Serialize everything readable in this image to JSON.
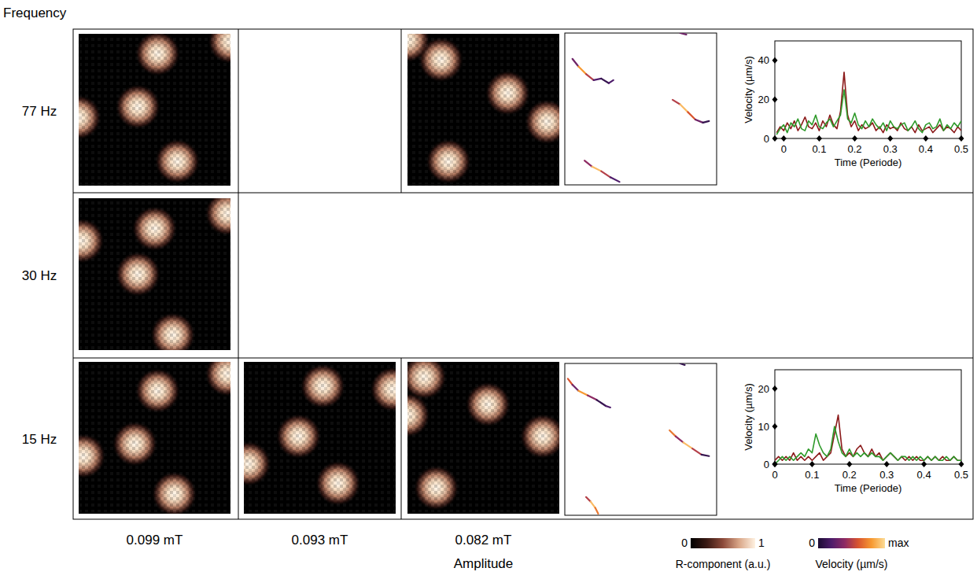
{
  "y_axis_title": "Frequency",
  "x_axis_title": "Amplitude",
  "rows": [
    "77 Hz",
    "30 Hz",
    "15 Hz"
  ],
  "columns": [
    "0.099 mT",
    "0.093 mT",
    "0.082 mT"
  ],
  "images": [
    {
      "row": 0,
      "col": 0,
      "spots": [
        [
          0.52,
          0.13
        ],
        [
          0.39,
          0.48
        ],
        [
          0.65,
          0.84
        ],
        [
          1.0,
          0.05
        ],
        [
          0.0,
          0.55
        ]
      ]
    },
    {
      "row": 1,
      "col": 0,
      "spots": [
        [
          0.5,
          0.2
        ],
        [
          0.39,
          0.5
        ],
        [
          0.62,
          0.9
        ],
        [
          0.98,
          0.1
        ],
        [
          0.02,
          0.28
        ]
      ]
    },
    {
      "row": 2,
      "col": 0,
      "spots": [
        [
          0.52,
          0.19
        ],
        [
          0.37,
          0.54
        ],
        [
          0.63,
          0.87
        ],
        [
          0.98,
          0.08
        ],
        [
          0.03,
          0.62
        ]
      ]
    },
    {
      "row": 2,
      "col": 1,
      "spots": [
        [
          0.52,
          0.16
        ],
        [
          0.36,
          0.49
        ],
        [
          0.62,
          0.8
        ],
        [
          0.98,
          0.18
        ],
        [
          0.03,
          0.67
        ]
      ]
    },
    {
      "row": 0,
      "col": 2,
      "spots": [
        [
          0.22,
          0.17
        ],
        [
          0.66,
          0.39
        ],
        [
          0.92,
          0.58
        ],
        [
          0.27,
          0.84
        ],
        [
          0.0,
          0.04
        ]
      ]
    },
    {
      "row": 2,
      "col": 2,
      "spots": [
        [
          0.11,
          0.1
        ],
        [
          0.53,
          0.28
        ],
        [
          0.89,
          0.49
        ],
        [
          0.19,
          0.83
        ],
        [
          0.0,
          0.35
        ]
      ]
    }
  ],
  "trajectories": [
    {
      "row": 0,
      "tracks": [
        {
          "points": [
            [
              0.05,
              0.17,
              0.1
            ],
            [
              0.09,
              0.22,
              0.3
            ],
            [
              0.14,
              0.27,
              0.8
            ],
            [
              0.19,
              0.31,
              0.5
            ],
            [
              0.24,
              0.3,
              0.2
            ],
            [
              0.29,
              0.33,
              0.1
            ],
            [
              0.32,
              0.31,
              0.2
            ]
          ]
        },
        {
          "points": [
            [
              0.71,
              0.44,
              0.2
            ],
            [
              0.76,
              0.47,
              0.5
            ],
            [
              0.81,
              0.52,
              0.9
            ],
            [
              0.86,
              0.57,
              0.6
            ],
            [
              0.91,
              0.59,
              0.3
            ],
            [
              0.95,
              0.58,
              0.1
            ]
          ]
        },
        {
          "points": [
            [
              0.13,
              0.84,
              0.1
            ],
            [
              0.18,
              0.88,
              0.4
            ],
            [
              0.24,
              0.91,
              0.9
            ],
            [
              0.3,
              0.95,
              0.5
            ],
            [
              0.36,
              0.98,
              0.2
            ]
          ]
        },
        {
          "points": [
            [
              0.76,
              0.0,
              0.8
            ],
            [
              0.8,
              0.01,
              0.3
            ]
          ]
        }
      ]
    },
    {
      "row": 2,
      "tracks": [
        {
          "points": [
            [
              0.02,
              0.1,
              0.2
            ],
            [
              0.05,
              0.14,
              0.6
            ],
            [
              0.09,
              0.18,
              0.3
            ],
            [
              0.15,
              0.21,
              0.8
            ],
            [
              0.21,
              0.24,
              0.4
            ],
            [
              0.27,
              0.28,
              0.1
            ],
            [
              0.3,
              0.29,
              0.2
            ]
          ]
        },
        {
          "points": [
            [
              0.69,
              0.44,
              0.3
            ],
            [
              0.73,
              0.48,
              0.7
            ],
            [
              0.78,
              0.52,
              0.4
            ],
            [
              0.84,
              0.56,
              0.9
            ],
            [
              0.9,
              0.6,
              0.5
            ],
            [
              0.95,
              0.61,
              0.1
            ]
          ]
        },
        {
          "points": [
            [
              0.14,
              0.88,
              0.2
            ],
            [
              0.17,
              0.91,
              0.5
            ],
            [
              0.2,
              0.95,
              0.9
            ],
            [
              0.22,
              0.99,
              0.7
            ]
          ]
        },
        {
          "points": [
            [
              0.76,
              0.0,
              0.3
            ],
            [
              0.79,
              0.01,
              0.1
            ]
          ]
        }
      ]
    }
  ],
  "colorbars": [
    {
      "label": "R-component (a.u.)",
      "range": [
        0,
        1
      ],
      "ticks": [
        0,
        1
      ]
    },
    {
      "label": "Velocity (µm/s)",
      "range": [
        0,
        1
      ],
      "ticks": [
        0,
        {
          "value": 1,
          "label": "max"
        }
      ]
    }
  ],
  "chart_data": [
    {
      "type": "line",
      "x_label": "Time (Periode)",
      "y_label": "Velocity (µm/s)",
      "x": [
        -0.02,
        -0.01,
        0,
        0.01,
        0.02,
        0.03,
        0.04,
        0.05,
        0.06,
        0.07,
        0.08,
        0.09,
        0.1,
        0.11,
        0.12,
        0.13,
        0.14,
        0.15,
        0.16,
        0.17,
        0.18,
        0.19,
        0.2,
        0.21,
        0.22,
        0.23,
        0.24,
        0.25,
        0.26,
        0.27,
        0.28,
        0.29,
        0.3,
        0.31,
        0.32,
        0.33,
        0.34,
        0.35,
        0.36,
        0.37,
        0.38,
        0.39,
        0.4,
        0.41,
        0.42,
        0.43,
        0.44,
        0.45,
        0.46,
        0.47,
        0.48,
        0.49,
        0.5
      ],
      "series": [
        {
          "color": "#8b1a1a",
          "values": [
            3,
            6,
            4,
            8,
            5,
            9,
            4,
            7,
            11,
            6,
            5,
            8,
            4,
            9,
            6,
            12,
            7,
            5,
            14,
            34,
            12,
            6,
            9,
            4,
            7,
            5,
            6,
            8,
            4,
            6,
            3,
            7,
            5,
            6,
            4,
            8,
            5,
            4,
            6,
            3,
            7,
            4,
            5,
            6,
            3,
            5,
            7,
            4,
            6,
            5,
            3,
            6,
            4
          ]
        },
        {
          "color": "#2e9a2a",
          "values": [
            2,
            5,
            7,
            3,
            8,
            6,
            10,
            5,
            4,
            9,
            7,
            12,
            6,
            5,
            8,
            10,
            6,
            9,
            12,
            25,
            10,
            8,
            13,
            7,
            5,
            9,
            6,
            10,
            7,
            5,
            8,
            4,
            9,
            6,
            5,
            7,
            8,
            4,
            6,
            9,
            5,
            3,
            7,
            8,
            5,
            6,
            10,
            4,
            7,
            5,
            8,
            6,
            9
          ]
        }
      ],
      "xlim": [
        -0.025,
        0.5
      ],
      "ylim": [
        0,
        50
      ],
      "xticks": [
        0,
        0.1,
        0.2,
        0.3,
        0.4,
        0.5
      ],
      "yticks": [
        0,
        20,
        40
      ]
    },
    {
      "type": "line",
      "x_label": "Time (Periode)",
      "y_label": "Velocity (µm/s)",
      "x": [
        0,
        0.01,
        0.02,
        0.03,
        0.04,
        0.05,
        0.06,
        0.07,
        0.08,
        0.09,
        0.1,
        0.11,
        0.12,
        0.13,
        0.14,
        0.15,
        0.16,
        0.17,
        0.18,
        0.19,
        0.2,
        0.21,
        0.22,
        0.23,
        0.24,
        0.25,
        0.26,
        0.27,
        0.28,
        0.29,
        0.3,
        0.31,
        0.32,
        0.33,
        0.34,
        0.35,
        0.36,
        0.37,
        0.38,
        0.39,
        0.4,
        0.41,
        0.42,
        0.43,
        0.44,
        0.45,
        0.46,
        0.47,
        0.48,
        0.49,
        0.5
      ],
      "series": [
        {
          "color": "#8b1a1a",
          "values": [
            1,
            2,
            1,
            2,
            1,
            3,
            1,
            2,
            1,
            2,
            1,
            2,
            3,
            1,
            2,
            3,
            8,
            13,
            4,
            2,
            3,
            2,
            4,
            5,
            3,
            2,
            4,
            2,
            3,
            1,
            2,
            3,
            2,
            1,
            2,
            1,
            2,
            1,
            2,
            1,
            1,
            2,
            1,
            2,
            1,
            2,
            1,
            1,
            2,
            1,
            1
          ]
        },
        {
          "color": "#2e9a2a",
          "values": [
            0,
            1,
            2,
            1,
            2,
            1,
            2,
            3,
            2,
            4,
            3,
            8,
            5,
            3,
            2,
            4,
            10,
            6,
            3,
            2,
            4,
            2,
            3,
            2,
            3,
            2,
            3,
            2,
            2,
            1,
            2,
            3,
            2,
            1,
            2,
            2,
            1,
            2,
            1,
            2,
            1,
            2,
            1,
            2,
            1,
            1,
            2,
            1,
            2,
            1,
            1
          ]
        }
      ],
      "xlim": [
        0,
        0.5
      ],
      "ylim": [
        0,
        25
      ],
      "xticks": [
        0,
        0.1,
        0.2,
        0.3,
        0.4,
        0.5
      ],
      "yticks": [
        0,
        10,
        20
      ]
    }
  ]
}
